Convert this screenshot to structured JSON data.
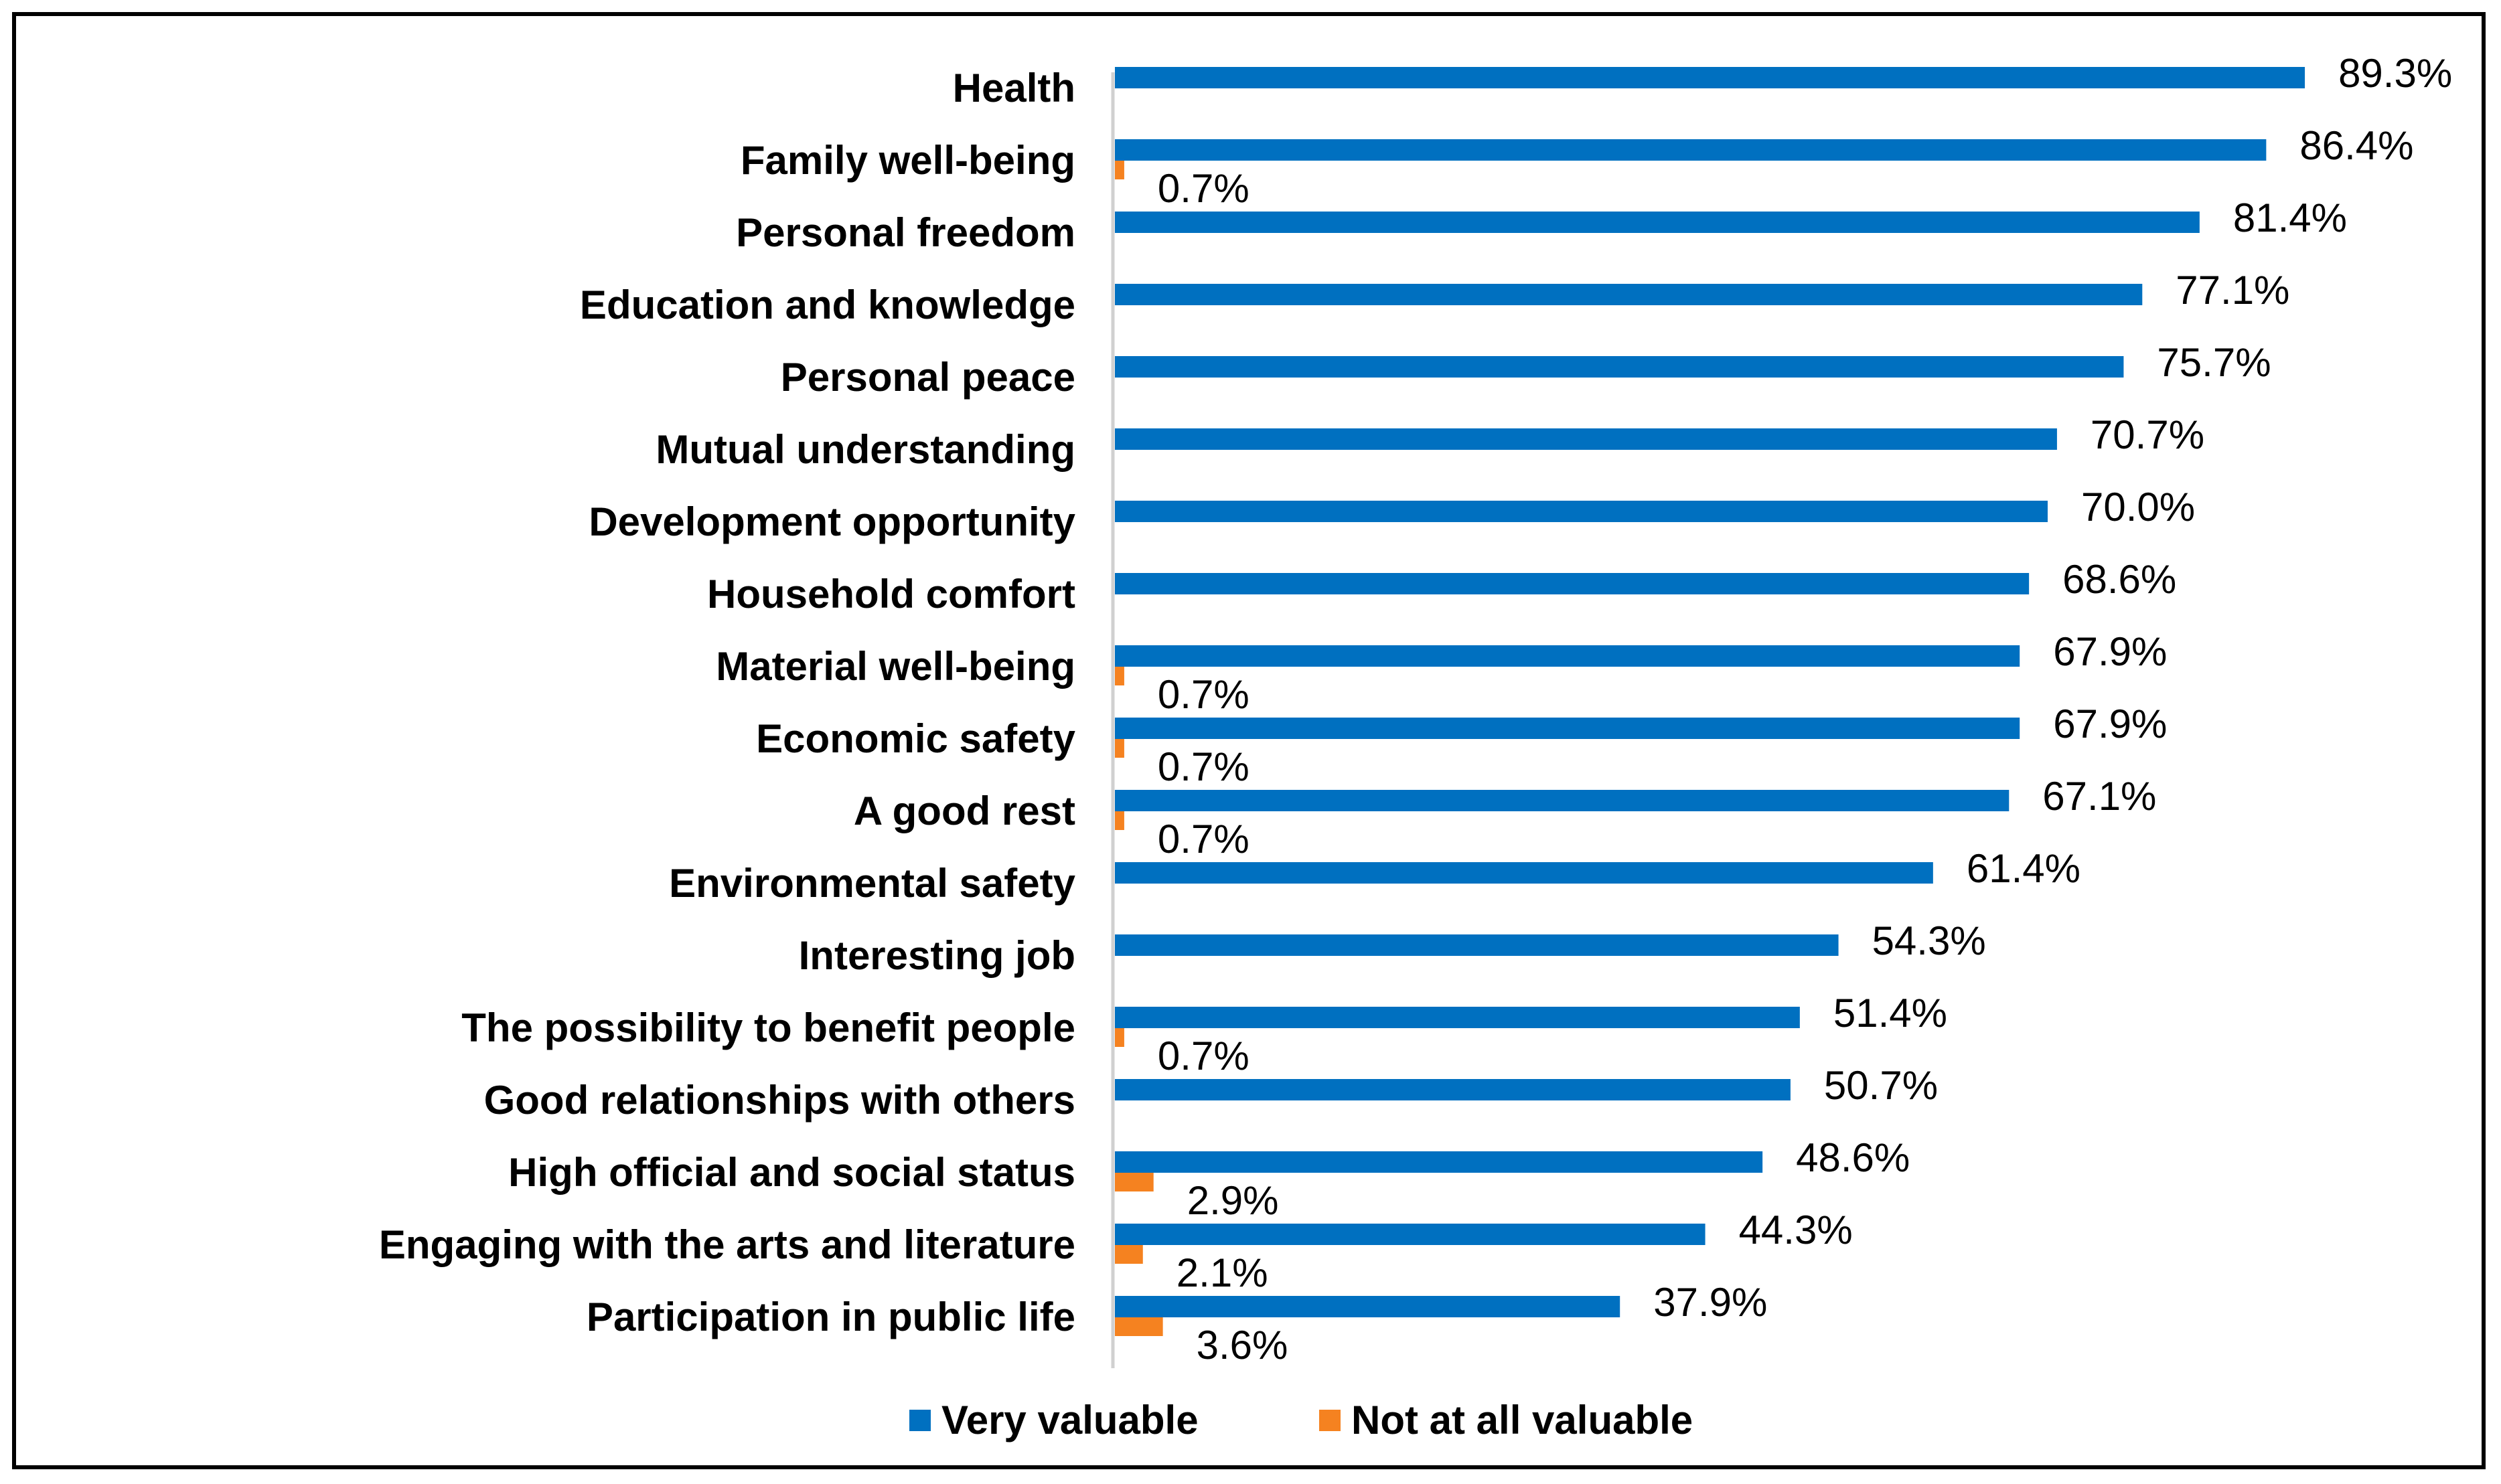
{
  "chart_data": {
    "type": "bar",
    "orientation": "horizontal",
    "title": "",
    "xlabel": "",
    "ylabel": "",
    "xlim": [
      0,
      100
    ],
    "grid": false,
    "legend_position": "bottom",
    "categories": [
      "Health",
      "Family well-being",
      "Personal freedom",
      "Education and knowledge",
      "Personal peace",
      "Mutual understanding",
      "Development   opportunity",
      "Household comfort",
      "Material well-being",
      "Economic safety",
      "A good rest",
      "Environmental safety",
      "Interesting job",
      "The possibility to benefit people",
      "Good relationships with others",
      "High official and social status",
      "Engaging with the arts and literature",
      "Participation in public life"
    ],
    "series": [
      {
        "name": "Very valuable",
        "color": "#0070C0",
        "values": [
          89.3,
          86.4,
          81.4,
          77.1,
          75.7,
          70.7,
          70.0,
          68.6,
          67.9,
          67.9,
          67.1,
          61.4,
          54.3,
          51.4,
          50.7,
          48.6,
          44.3,
          37.9
        ],
        "labels": [
          "89.3%",
          "86.4%",
          "81.4%",
          "77.1%",
          "75.7%",
          "70.7%",
          "70.0%",
          "68.6%",
          "67.9%",
          "67.9%",
          "67.1%",
          "61.4%",
          "54.3%",
          "51.4%",
          "50.7%",
          "48.6%",
          "44.3%",
          "37.9%"
        ]
      },
      {
        "name": "Not at all valuable",
        "color": "#F58220",
        "values": [
          null,
          0.7,
          null,
          null,
          null,
          null,
          null,
          null,
          0.7,
          0.7,
          0.7,
          null,
          null,
          0.7,
          null,
          2.9,
          2.1,
          3.6
        ],
        "labels": [
          null,
          "0.7%",
          null,
          null,
          null,
          null,
          null,
          null,
          "0.7%",
          "0.7%",
          "0.7%",
          null,
          null,
          "0.7%",
          null,
          "2.9%",
          "2.1%",
          "3.6%"
        ]
      }
    ]
  }
}
